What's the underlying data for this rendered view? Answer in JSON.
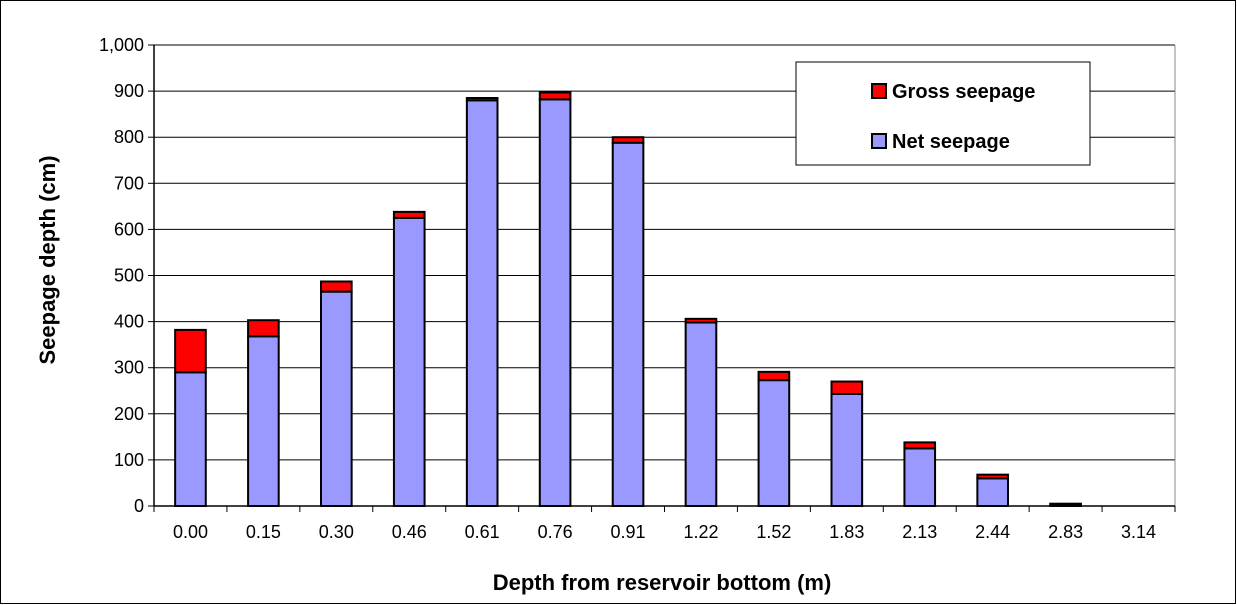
{
  "chart_data": {
    "type": "bar",
    "stacked": true,
    "xlabel": "Depth from reservoir bottom (m)",
    "ylabel": "Seepage depth (cm)",
    "categories": [
      "0.00",
      "0.15",
      "0.30",
      "0.46",
      "0.61",
      "0.76",
      "0.91",
      "1.22",
      "1.52",
      "1.83",
      "2.13",
      "2.44",
      "2.83",
      "3.14"
    ],
    "ylim": [
      0,
      1000
    ],
    "yticks": [
      0,
      100,
      200,
      300,
      400,
      500,
      600,
      700,
      800,
      900,
      1000
    ],
    "ytick_labels": [
      "0",
      "100",
      "200",
      "300",
      "400",
      "500",
      "600",
      "700",
      "800",
      "900",
      "1,000"
    ],
    "grid": true,
    "legend_position": "top-right",
    "series": [
      {
        "name": "Net seepage",
        "color": "#9999ff",
        "values": [
          290,
          368,
          465,
          625,
          880,
          882,
          788,
          398,
          273,
          243,
          125,
          60,
          3,
          0
        ]
      },
      {
        "name": "Gross seepage",
        "color": "#ff0000",
        "values": [
          92,
          35,
          22,
          13,
          5,
          15,
          12,
          8,
          18,
          27,
          13,
          8,
          2,
          0
        ]
      }
    ],
    "legend": [
      {
        "name": "Gross seepage",
        "color": "#ff0000"
      },
      {
        "name": "Net seepage",
        "color": "#9999ff"
      }
    ]
  }
}
